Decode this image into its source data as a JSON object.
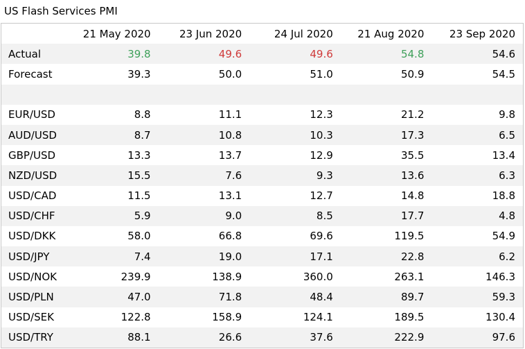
{
  "title": "US Flash Services PMI",
  "columns": [
    "21 May 2020",
    "23 Jun 2020",
    "24 Jul 2020",
    "21 Aug 2020",
    "23 Sep 2020"
  ],
  "colors": {
    "beat": "#3fa05a",
    "miss": "#cf3a3a",
    "row_shade": "#f2f2f2",
    "border": "#c8c8c8"
  },
  "actual": {
    "label": "Actual",
    "values": [
      "39.8",
      "49.6",
      "49.6",
      "54.8",
      "54.6"
    ],
    "status": [
      "beat",
      "miss",
      "miss",
      "beat",
      "neutral"
    ]
  },
  "forecast": {
    "label": "Forecast",
    "values": [
      "39.3",
      "50.0",
      "51.0",
      "50.9",
      "54.5"
    ]
  },
  "pairs": [
    {
      "label": "EUR/USD",
      "values": [
        "8.8",
        "11.1",
        "12.3",
        "21.2",
        "9.8"
      ]
    },
    {
      "label": "AUD/USD",
      "values": [
        "8.7",
        "10.8",
        "10.3",
        "17.3",
        "6.5"
      ]
    },
    {
      "label": "GBP/USD",
      "values": [
        "13.3",
        "13.7",
        "12.9",
        "35.5",
        "13.4"
      ]
    },
    {
      "label": "NZD/USD",
      "values": [
        "15.5",
        "7.6",
        "9.3",
        "13.6",
        "6.3"
      ]
    },
    {
      "label": "USD/CAD",
      "values": [
        "11.5",
        "13.1",
        "12.7",
        "14.8",
        "18.8"
      ]
    },
    {
      "label": "USD/CHF",
      "values": [
        "5.9",
        "9.0",
        "8.5",
        "17.7",
        "4.8"
      ]
    },
    {
      "label": "USD/DKK",
      "values": [
        "58.0",
        "66.8",
        "69.6",
        "119.5",
        "54.9"
      ]
    },
    {
      "label": "USD/JPY",
      "values": [
        "7.4",
        "19.0",
        "17.1",
        "22.8",
        "6.2"
      ]
    },
    {
      "label": "USD/NOK",
      "values": [
        "239.9",
        "138.9",
        "360.0",
        "263.1",
        "146.3"
      ]
    },
    {
      "label": "USD/PLN",
      "values": [
        "47.0",
        "71.8",
        "48.4",
        "89.7",
        "59.3"
      ]
    },
    {
      "label": "USD/SEK",
      "values": [
        "122.8",
        "158.9",
        "124.1",
        "189.5",
        "130.4"
      ]
    },
    {
      "label": "USD/TRY",
      "values": [
        "88.1",
        "26.6",
        "37.6",
        "222.9",
        "97.6"
      ]
    }
  ]
}
